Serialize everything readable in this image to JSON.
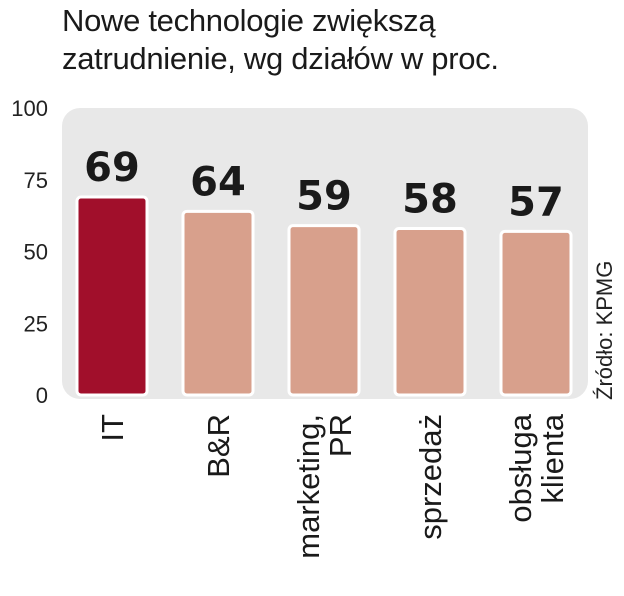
{
  "chart_data": {
    "type": "bar",
    "title_lines": [
      "Nowe technologie zwiększą",
      "zatrudnienie, wg działów w proc."
    ],
    "categories": [
      [
        "IT"
      ],
      [
        "B&R"
      ],
      [
        "marketing,",
        "PR"
      ],
      [
        "sprzedaż"
      ],
      [
        "obsługa",
        "klienta"
      ]
    ],
    "values": [
      69,
      64,
      59,
      58,
      57
    ],
    "value_labels": [
      "69",
      "64",
      "59",
      "58",
      "57"
    ],
    "ylim": [
      0,
      100
    ],
    "yticks": [
      "100",
      "75",
      "50",
      "25",
      "0"
    ],
    "ytick_values": [
      100,
      75,
      50,
      25,
      0
    ],
    "source": "Źródło: KPMG",
    "colors": {
      "highlight": "#a10f2b",
      "bar": "#d8a08c",
      "panel": "#e8e8e8"
    },
    "highlight_index": 0
  }
}
